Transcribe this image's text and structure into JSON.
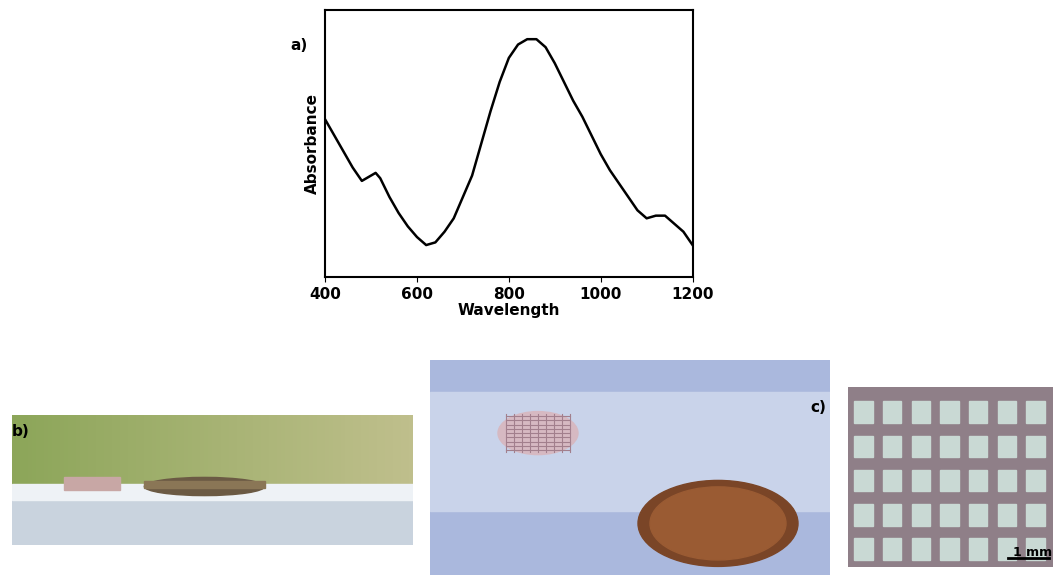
{
  "chart_data": {
    "type": "line",
    "x_label": "Wavelength",
    "y_label": "Absorbance",
    "x": [
      400,
      420,
      440,
      460,
      480,
      500,
      510,
      520,
      540,
      560,
      580,
      600,
      620,
      640,
      660,
      680,
      700,
      720,
      740,
      760,
      780,
      800,
      820,
      840,
      860,
      880,
      900,
      920,
      940,
      960,
      980,
      1000,
      1020,
      1040,
      1060,
      1080,
      1100,
      1120,
      1140,
      1160,
      1180,
      1200
    ],
    "values": [
      0.59,
      0.53,
      0.47,
      0.41,
      0.36,
      0.38,
      0.39,
      0.37,
      0.3,
      0.24,
      0.19,
      0.15,
      0.12,
      0.13,
      0.17,
      0.22,
      0.3,
      0.38,
      0.5,
      0.62,
      0.73,
      0.82,
      0.87,
      0.89,
      0.89,
      0.86,
      0.8,
      0.73,
      0.66,
      0.6,
      0.53,
      0.46,
      0.4,
      0.35,
      0.3,
      0.25,
      0.22,
      0.23,
      0.23,
      0.2,
      0.17,
      0.12
    ],
    "color": "#000000",
    "xlim": [
      400,
      1200
    ],
    "xticks": [
      400,
      600,
      800,
      1000,
      1200
    ],
    "ylim": [
      0,
      1
    ],
    "yticks": [],
    "tick_labels": "x",
    "grid": false
  },
  "panel_labels": [
    "a)",
    "b)",
    "c)"
  ],
  "scale_bar": "1 mm"
}
